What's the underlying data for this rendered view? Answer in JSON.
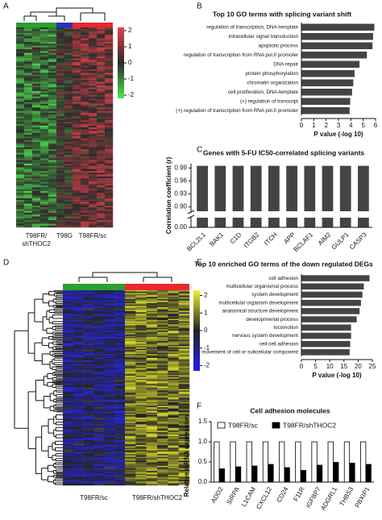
{
  "chart_data": [
    {
      "type": "heatmap",
      "label": "A",
      "colorscale": [
        "#e8414a",
        "#2a2a2a",
        "#4ee44e"
      ],
      "clim": [
        -2.2,
        2.2
      ],
      "cticks": [
        2,
        1,
        0,
        -1,
        -2
      ],
      "groups": [
        {
          "name": [
            "T98FR/",
            "shTHOC2"
          ],
          "color": "#2ca02c"
        },
        {
          "name": "T98G",
          "color": "#2233cc"
        },
        {
          "name": "T98FR/sc",
          "color": "#e8282d"
        }
      ]
    },
    {
      "type": "hbar",
      "label": "B",
      "title": "Top 10 GO terms with splicing variant shift",
      "categories": [
        "regulation of transcription, DNA-template",
        "intracellular signal transduction",
        "apoptotic process",
        "regulation of transcription from RNA pol.II promoter",
        "DNA repair",
        "protein phosphorylation",
        "chromatin organization",
        "cell proliferation, DNA-template",
        "(+) regulation of transcript",
        "(+) regulation of transcription from RNA pol.II promoter"
      ],
      "values": [
        5.9,
        5.8,
        5.75,
        5.3,
        4.7,
        4.3,
        4.2,
        4.1,
        3.95,
        3.9
      ],
      "color": "#444444",
      "xlim": [
        0,
        6
      ],
      "xticks": [
        0,
        1,
        2,
        3,
        4,
        5,
        6
      ],
      "xlabel": "P value (-log 10)"
    },
    {
      "type": "brokenbar",
      "label": "C",
      "title": "Genes with 5-FU IC50-correlated splicing variants",
      "categories": [
        "BCL2L1",
        "BAK1",
        "C1D",
        "ITGB2",
        "ITCH",
        "APP",
        "BCLAF1",
        "AIM2",
        "GULP1",
        "CASP3"
      ],
      "values": [
        0.995,
        0.995,
        0.995,
        0.995,
        0.995,
        0.995,
        0.995,
        0.995,
        0.995,
        0.995
      ],
      "color": "#444444",
      "ylim": [
        0,
        1.0
      ],
      "broken_axis": [
        0.01,
        0.89
      ],
      "yticks": [
        {
          "value": 0,
          "label": "0.00"
        },
        {
          "value": 0.9,
          "label": "0.90"
        },
        0.93,
        0.96,
        0.99
      ],
      "ylabel": "Correlation coefficient (r)"
    },
    {
      "type": "heatmap",
      "label": "D",
      "colorscale": [
        "#f2f22a",
        "#222222",
        "#2222ee"
      ],
      "clim": [
        -2.3,
        2.3
      ],
      "cticks": [
        2,
        1,
        0,
        -1,
        -2
      ],
      "groups": [
        {
          "name": "T98FR/sc",
          "color": "#2ca02c"
        },
        {
          "name": "T98FR/shTHOC2",
          "color": "#e8282d"
        }
      ]
    },
    {
      "type": "hbar",
      "label": "E",
      "title": "Top 10 enriched GO terms of the down regulated DEGs",
      "categories": [
        "cell adhesion",
        "multicellular organismal process",
        "system development",
        "multicellular organism development",
        "anatomical structure development",
        "developmental process",
        "locomotion",
        "nervous system development",
        "cell-cell adhesion",
        "movement of cell or subcellular component"
      ],
      "values": [
        24,
        22,
        21.5,
        21,
        20.5,
        19.5,
        17.5,
        17.5,
        17.2,
        17
      ],
      "color": "#444444",
      "xlim": [
        0,
        25
      ],
      "xticks": [
        0,
        5,
        10,
        15,
        20,
        25
      ],
      "xlabel": "P value (-log 10)"
    },
    {
      "type": "groupbar",
      "label": "F",
      "title": "Cell adhesion molecules",
      "categories": [
        "ADD2",
        "SIRPA",
        "L1CAM",
        "CXCL12",
        "CD24",
        "F11R",
        "IGFBP7",
        "ADGRL1",
        "THBS3",
        "PBXIP1"
      ],
      "series": [
        {
          "name": "T98FR/sc",
          "color": "#ffffff",
          "values": [
            1,
            1,
            1,
            1,
            1,
            1,
            1,
            1,
            1,
            1
          ]
        },
        {
          "name": "T98FR/shTHOC2",
          "color": "#000000",
          "values": [
            0.33,
            0.38,
            0.4,
            0.44,
            0.36,
            0.29,
            0.42,
            0.49,
            0.47,
            0.44
          ]
        }
      ],
      "ylim": [
        0,
        1.5
      ],
      "yticks": [
        {
          "value": 0,
          "label": "0.0"
        },
        0.5,
        {
          "value": 1,
          "label": "1.0"
        },
        1.5
      ],
      "ylabel": "Relative mRNA expression"
    }
  ]
}
